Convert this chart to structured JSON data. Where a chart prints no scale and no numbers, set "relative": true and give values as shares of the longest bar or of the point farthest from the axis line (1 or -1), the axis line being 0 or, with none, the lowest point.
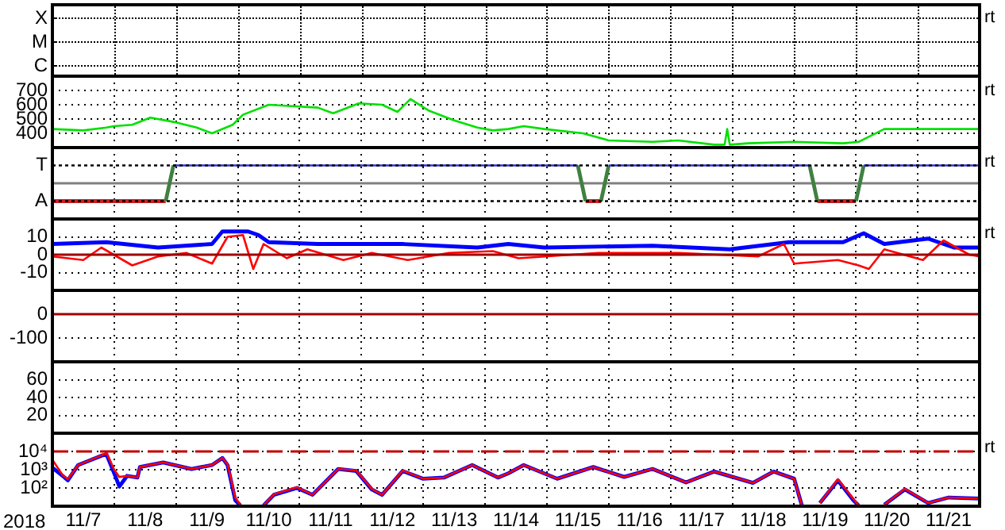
{
  "chart_data": [
    {
      "type": "other",
      "annotations": [
        "rt"
      ],
      "y_categories": [
        "X",
        "M",
        "C"
      ]
    },
    {
      "type": "line",
      "tick_labels": "y",
      "grid": true,
      "annotations": [
        "rt"
      ],
      "ylim": [
        300,
        800
      ],
      "yticks": [
        400,
        500,
        600,
        700
      ],
      "xlim": [
        "2018-11-07",
        "2018-11-22"
      ],
      "xticks": [
        {
          "value": "2018-11-07",
          "label": null
        },
        {
          "value": "2018-11-08",
          "label": null
        },
        {
          "value": "2018-11-09",
          "label": null
        },
        {
          "value": "2018-11-10",
          "label": null
        },
        {
          "value": "2018-11-11",
          "label": null
        },
        {
          "value": "2018-11-12",
          "label": null
        },
        {
          "value": "2018-11-13",
          "label": null
        },
        {
          "value": "2018-11-14",
          "label": null
        },
        {
          "value": "2018-11-15",
          "label": null
        },
        {
          "value": "2018-11-16",
          "label": null
        },
        {
          "value": "2018-11-17",
          "label": null
        },
        {
          "value": "2018-11-18",
          "label": null
        },
        {
          "value": "2018-11-19",
          "label": null
        },
        {
          "value": "2018-11-20",
          "label": null
        },
        {
          "value": "2018-11-21",
          "label": null
        },
        {
          "value": "2018-11-22",
          "label": null
        }
      ],
      "series": [
        {
          "color": "#00e000",
          "x": [
            "2018-11-07T00:00",
            "2018-11-07T12:00",
            "2018-11-07T21:00",
            "2018-11-08T00:00",
            "2018-11-08T07:00",
            "2018-11-08T14:00",
            "2018-11-08T23:00",
            "2018-11-09T08:00",
            "2018-11-09T14:00",
            "2018-11-09T22:00",
            "2018-11-10T02:00",
            "2018-11-10T12:00",
            "2018-11-10T21:00",
            "2018-11-11T07:00",
            "2018-11-11T13:00",
            "2018-11-11T23:00",
            "2018-11-12T08:00",
            "2018-11-12T14:00",
            "2018-11-12T19:00",
            "2018-11-13T02:00",
            "2018-11-13T12:00",
            "2018-11-13T21:00",
            "2018-11-14T03:00",
            "2018-11-14T09:00",
            "2018-11-14T15:00",
            "2018-11-14T23:00",
            "2018-11-15T14:00",
            "2018-11-16T00:00",
            "2018-11-16T17:00",
            "2018-11-17T03:00",
            "2018-11-17T17:00",
            "2018-11-17T21:00",
            "2018-11-17T22:00",
            "2018-11-17T23:00",
            "2018-11-18T06:00",
            "2018-11-19T00:00",
            "2018-11-19T19:00",
            "2018-11-20T01:00",
            "2018-11-20T11:00",
            "2018-11-20T23:00",
            "2018-11-21T14:00",
            "2018-11-22T00:00"
          ],
          "values": [
            430,
            420,
            440,
            450,
            460,
            510,
            480,
            440,
            400,
            460,
            530,
            600,
            590,
            580,
            540,
            610,
            600,
            550,
            640,
            560,
            490,
            440,
            420,
            430,
            450,
            430,
            400,
            350,
            340,
            350,
            320,
            320,
            430,
            320,
            330,
            340,
            330,
            340,
            430,
            430,
            430,
            430
          ]
        }
      ]
    },
    {
      "type": "line",
      "tick_labels": "y",
      "grid": true,
      "relative": true,
      "annotations": [
        "rt"
      ],
      "ref_lines": [
        {
          "axis": "y",
          "value": 1,
          "label": "T",
          "color": "#000000",
          "line_style": "dotted"
        },
        {
          "axis": "y",
          "value": -1,
          "label": "A",
          "color": "#000000",
          "line_style": "dotted"
        }
      ],
      "xlim": [
        "2018-11-07",
        "2018-11-22"
      ],
      "xticks": [
        {
          "value": "2018-11-07",
          "label": null
        },
        {
          "value": "2018-11-08",
          "label": null
        },
        {
          "value": "2018-11-09",
          "label": null
        },
        {
          "value": "2018-11-10",
          "label": null
        },
        {
          "value": "2018-11-11",
          "label": null
        },
        {
          "value": "2018-11-12",
          "label": null
        },
        {
          "value": "2018-11-13",
          "label": null
        },
        {
          "value": "2018-11-14",
          "label": null
        },
        {
          "value": "2018-11-15",
          "label": null
        },
        {
          "value": "2018-11-16",
          "label": null
        },
        {
          "value": "2018-11-17",
          "label": null
        },
        {
          "value": "2018-11-18",
          "label": null
        },
        {
          "value": "2018-11-19",
          "label": null
        },
        {
          "value": "2018-11-20",
          "label": null
        },
        {
          "value": "2018-11-21",
          "label": null
        },
        {
          "value": "2018-11-22",
          "label": null
        }
      ],
      "series": [
        {
          "type": "line",
          "color": "#cc2020",
          "x": [
            "2018-11-07T00:00",
            "2018-11-08T20:00",
            "2018-11-12T00:00",
            "2018-11-15T15:00",
            "2018-11-15T21:00",
            "2018-11-17T00:00",
            "2018-11-19T09:00",
            "2018-11-20T00:00"
          ],
          "values": [
            -1,
            -1,
            null,
            -1,
            -1,
            null,
            -1,
            -1
          ]
        },
        {
          "type": "line",
          "color": "#408040",
          "x": [
            "2018-11-08T20:00",
            "2018-11-08T23:00",
            "2018-11-12T00:00",
            "2018-11-15T12:00",
            "2018-11-15T15:00",
            "2018-11-15T18:00",
            "2018-11-15T21:00",
            "2018-11-16T00:00",
            "2018-11-17T00:00",
            "2018-11-19T06:00",
            "2018-11-19T09:00",
            "2018-11-19T18:00",
            "2018-11-20T00:00",
            "2018-11-20T03:00"
          ],
          "values": [
            -1,
            1,
            null,
            1,
            -1,
            null,
            -1,
            1,
            null,
            1,
            -1,
            null,
            -1,
            1
          ]
        },
        {
          "type": "line",
          "color": "#3333dd",
          "x": [
            "2018-11-08T23:00",
            "2018-11-15T12:00",
            "2018-11-15T18:00",
            "2018-11-16T00:00",
            "2018-11-19T06:00",
            "2018-11-19T18:00",
            "2018-11-20T03:00",
            "2018-11-22T00:00"
          ],
          "values": [
            1,
            1,
            null,
            1,
            1,
            null,
            1,
            1
          ]
        }
      ]
    },
    {
      "type": "line",
      "tick_labels": "y",
      "grid": true,
      "annotations": [
        "rt"
      ],
      "ylim": [
        -20,
        20
      ],
      "yticks": [
        10,
        0,
        -10
      ],
      "ref_lines": [
        {
          "axis": "y",
          "value": 0,
          "color": "#a00000"
        }
      ],
      "xlim": [
        "2018-11-07",
        "2018-11-22"
      ],
      "xticks": [
        {
          "value": "2018-11-07",
          "label": null
        },
        {
          "value": "2018-11-08",
          "label": null
        },
        {
          "value": "2018-11-09",
          "label": null
        },
        {
          "value": "2018-11-10",
          "label": null
        },
        {
          "value": "2018-11-11",
          "label": null
        },
        {
          "value": "2018-11-12",
          "label": null
        },
        {
          "value": "2018-11-13",
          "label": null
        },
        {
          "value": "2018-11-14",
          "label": null
        },
        {
          "value": "2018-11-15",
          "label": null
        },
        {
          "value": "2018-11-16",
          "label": null
        },
        {
          "value": "2018-11-17",
          "label": null
        },
        {
          "value": "2018-11-18",
          "label": null
        },
        {
          "value": "2018-11-19",
          "label": null
        },
        {
          "value": "2018-11-20",
          "label": null
        },
        {
          "value": "2018-11-21",
          "label": null
        },
        {
          "value": "2018-11-22",
          "label": null
        }
      ],
      "series": [
        {
          "color": "#0000ff",
          "x": [
            "2018-11-07T00:00",
            "2018-11-07T21:00",
            "2018-11-08T17:00",
            "2018-11-09T14:00",
            "2018-11-09T18:00",
            "2018-11-10T04:00",
            "2018-11-10T08:00",
            "2018-11-10T12:00",
            "2018-11-11T07:00",
            "2018-11-11T23:00",
            "2018-11-12T16:00",
            "2018-11-13T21:00",
            "2018-11-14T09:00",
            "2018-11-14T23:00",
            "2018-11-16T17:00",
            "2018-11-17T23:00",
            "2018-11-18T22:00",
            "2018-11-19T19:00",
            "2018-11-20T03:00",
            "2018-11-20T11:00",
            "2018-11-21T04:00",
            "2018-11-21T14:00",
            "2018-11-22T00:00"
          ],
          "values": [
            6,
            7,
            4,
            6,
            13,
            13,
            11,
            7,
            6,
            6,
            6,
            4,
            6,
            4,
            5,
            3,
            7,
            7,
            12,
            6,
            9,
            4,
            4
          ]
        },
        {
          "color": "#ff0000",
          "x": [
            "2018-11-07T00:00",
            "2018-11-07T12:00",
            "2018-11-07T19:00",
            "2018-11-08T07:00",
            "2018-11-08T17:00",
            "2018-11-09T04:00",
            "2018-11-09T14:00",
            "2018-11-09T20:00",
            "2018-11-10T02:00",
            "2018-11-10T06:00",
            "2018-11-10T10:00",
            "2018-11-10T19:00",
            "2018-11-11T03:00",
            "2018-11-11T17:00",
            "2018-11-12T04:00",
            "2018-11-12T18:00",
            "2018-11-13T10:00",
            "2018-11-14T03:00",
            "2018-11-14T13:00",
            "2018-11-15T20:00",
            "2018-11-17T03:00",
            "2018-11-18T10:00",
            "2018-11-18T20:00",
            "2018-11-19T00:00",
            "2018-11-19T17:00",
            "2018-11-20T01:00",
            "2018-11-20T05:00",
            "2018-11-20T11:00",
            "2018-11-21T02:00",
            "2018-11-21T10:00",
            "2018-11-21T20:00",
            "2018-11-22T00:00"
          ],
          "values": [
            -1,
            -3,
            4,
            -6,
            -1,
            1,
            -5,
            10,
            11,
            -8,
            6,
            -2,
            3,
            -3,
            1,
            -3,
            1,
            2,
            -2,
            1,
            1,
            -1,
            6,
            -5,
            -3,
            -6,
            -8,
            3,
            -3,
            8,
            0,
            -1
          ]
        }
      ]
    },
    {
      "type": "line",
      "tick_labels": "y",
      "grid": true,
      "ylim": [
        -200,
        100
      ],
      "yticks": [
        0,
        -100
      ],
      "ref_lines": [
        {
          "axis": "y",
          "value": 0,
          "color": "#a00000"
        }
      ],
      "xlim": [
        "2018-11-07",
        "2018-11-22"
      ],
      "xticks": [
        {
          "value": "2018-11-07",
          "label": null
        },
        {
          "value": "2018-11-08",
          "label": null
        },
        {
          "value": "2018-11-09",
          "label": null
        },
        {
          "value": "2018-11-10",
          "label": null
        },
        {
          "value": "2018-11-11",
          "label": null
        },
        {
          "value": "2018-11-12",
          "label": null
        },
        {
          "value": "2018-11-13",
          "label": null
        },
        {
          "value": "2018-11-14",
          "label": null
        },
        {
          "value": "2018-11-15",
          "label": null
        },
        {
          "value": "2018-11-16",
          "label": null
        },
        {
          "value": "2018-11-17",
          "label": null
        },
        {
          "value": "2018-11-18",
          "label": null
        },
        {
          "value": "2018-11-19",
          "label": null
        },
        {
          "value": "2018-11-20",
          "label": null
        },
        {
          "value": "2018-11-21",
          "label": null
        },
        {
          "value": "2018-11-22",
          "label": null
        }
      ]
    },
    {
      "type": "line",
      "tick_labels": "y",
      "grid": true,
      "ylim": [
        0,
        80
      ],
      "yticks": [
        60,
        40,
        20
      ],
      "xlim": [
        "2018-11-07",
        "2018-11-22"
      ],
      "xticks": [
        {
          "value": "2018-11-07",
          "label": null
        },
        {
          "value": "2018-11-08",
          "label": null
        },
        {
          "value": "2018-11-09",
          "label": null
        },
        {
          "value": "2018-11-10",
          "label": null
        },
        {
          "value": "2018-11-11",
          "label": null
        },
        {
          "value": "2018-11-12",
          "label": null
        },
        {
          "value": "2018-11-13",
          "label": null
        },
        {
          "value": "2018-11-14",
          "label": null
        },
        {
          "value": "2018-11-15",
          "label": null
        },
        {
          "value": "2018-11-16",
          "label": null
        },
        {
          "value": "2018-11-17",
          "label": null
        },
        {
          "value": "2018-11-18",
          "label": null
        },
        {
          "value": "2018-11-19",
          "label": null
        },
        {
          "value": "2018-11-20",
          "label": null
        },
        {
          "value": "2018-11-21",
          "label": null
        },
        {
          "value": "2018-11-22",
          "label": null
        }
      ]
    },
    {
      "type": "line",
      "log": true,
      "grid": true,
      "xlabel": "2018",
      "annotations": [
        "rt"
      ],
      "ylim": [
        10,
        100000
      ],
      "yticks": [
        {
          "value": 10000,
          "label": "10⁴"
        },
        {
          "value": 1000,
          "label": "10³"
        },
        {
          "value": 100,
          "label": "10²"
        }
      ],
      "ref_lines": [
        {
          "axis": "y",
          "value": 10000,
          "color": "#c00000",
          "line_style": "dashed"
        }
      ],
      "xlim": [
        "2018-11-07",
        "2018-11-22"
      ],
      "xticks": [
        {
          "value": "2018-11-07",
          "label": null
        },
        {
          "value": "2018-11-07T12:00",
          "label": "11/7"
        },
        {
          "value": "2018-11-08",
          "label": null
        },
        {
          "value": "2018-11-08T12:00",
          "label": "11/8"
        },
        {
          "value": "2018-11-09",
          "label": null
        },
        {
          "value": "2018-11-09T12:00",
          "label": "11/9"
        },
        {
          "value": "2018-11-10",
          "label": null
        },
        {
          "value": "2018-11-10T12:00",
          "label": "11/10"
        },
        {
          "value": "2018-11-11",
          "label": null
        },
        {
          "value": "2018-11-11T12:00",
          "label": "11/11"
        },
        {
          "value": "2018-11-12",
          "label": null
        },
        {
          "value": "2018-11-12T12:00",
          "label": "11/12"
        },
        {
          "value": "2018-11-13",
          "label": null
        },
        {
          "value": "2018-11-13T12:00",
          "label": "11/13"
        },
        {
          "value": "2018-11-14",
          "label": null
        },
        {
          "value": "2018-11-14T12:00",
          "label": "11/14"
        },
        {
          "value": "2018-11-15",
          "label": null
        },
        {
          "value": "2018-11-15T12:00",
          "label": "11/15"
        },
        {
          "value": "2018-11-16",
          "label": null
        },
        {
          "value": "2018-11-16T12:00",
          "label": "11/16"
        },
        {
          "value": "2018-11-17",
          "label": null
        },
        {
          "value": "2018-11-17T12:00",
          "label": "11/17"
        },
        {
          "value": "2018-11-18",
          "label": null
        },
        {
          "value": "2018-11-18T12:00",
          "label": "11/18"
        },
        {
          "value": "2018-11-19",
          "label": null
        },
        {
          "value": "2018-11-19T12:00",
          "label": "11/19"
        },
        {
          "value": "2018-11-20",
          "label": null
        },
        {
          "value": "2018-11-20T12:00",
          "label": "11/20"
        },
        {
          "value": "2018-11-21",
          "label": null
        },
        {
          "value": "2018-11-21T12:00",
          "label": "11/21"
        },
        {
          "value": "2018-11-22",
          "label": null
        }
      ],
      "series": [
        {
          "color": "#0000ff",
          "x": [
            "2018-11-07T00:00",
            "2018-11-07T04:00",
            "2018-11-07T06:00",
            "2018-11-07T10:00",
            "2018-11-07T19:00",
            "2018-11-07T21:00",
            "2018-11-08T00:00",
            "2018-11-08T02:00",
            "2018-11-08T05:00",
            "2018-11-08T09:00",
            "2018-11-08T10:00",
            "2018-11-08T19:00",
            "2018-11-09T06:00",
            "2018-11-09T14:00",
            "2018-11-09T18:00",
            "2018-11-09T20:00",
            "2018-11-09T23:00",
            "2018-11-10T01:00",
            "2018-11-10T05:00",
            "2018-11-10T10:00",
            "2018-11-10T14:00",
            "2018-11-10T23:00",
            "2018-11-11T05:00",
            "2018-11-11T15:00",
            "2018-11-11T22:00",
            "2018-11-12T04:00",
            "2018-11-12T08:00",
            "2018-11-12T16:00",
            "2018-11-13T00:00",
            "2018-11-13T08:00",
            "2018-11-13T19:00",
            "2018-11-14T05:00",
            "2018-11-14T09:00",
            "2018-11-14T15:00",
            "2018-11-15T04:00",
            "2018-11-15T18:00",
            "2018-11-16T06:00",
            "2018-11-16T17:00",
            "2018-11-17T06:00",
            "2018-11-17T17:00",
            "2018-11-18T08:00",
            "2018-11-18T16:00",
            "2018-11-19T00:00",
            "2018-11-19T03:00",
            "2018-11-19T06:00",
            "2018-11-19T10:00",
            "2018-11-19T17:00",
            "2018-11-19T23:00",
            "2018-11-20T01:00",
            "2018-11-20T06:00",
            "2018-11-20T11:00",
            "2018-11-20T19:00",
            "2018-11-21T04:00",
            "2018-11-21T12:00",
            "2018-11-22T00:00"
          ],
          "values": [
            1300,
            460,
            260,
            1800,
            5800,
            6900,
            630,
            120,
            460,
            370,
            1400,
            2500,
            1100,
            1800,
            4400,
            1800,
            21,
            11,
            null,
            11,
            42,
            100,
            42,
            1100,
            850,
            83,
            42,
            850,
            320,
            370,
            1800,
            370,
            630,
            1800,
            320,
            1400,
            400,
            1100,
            200,
            790,
            190,
            790,
            320,
            11,
            null,
            15,
            260,
            21,
            11,
            null,
            12,
            83,
            15,
            30,
            26
          ]
        },
        {
          "color": "#ff0000",
          "x": [
            "2018-11-07T00:00",
            "2018-11-07T04:00",
            "2018-11-07T06:00",
            "2018-11-07T10:00",
            "2018-11-07T19:00",
            "2018-11-07T21:00",
            "2018-11-08T00:00",
            "2018-11-08T02:00",
            "2018-11-08T05:00",
            "2018-11-08T09:00",
            "2018-11-08T10:00",
            "2018-11-08T19:00",
            "2018-11-09T06:00",
            "2018-11-09T14:00",
            "2018-11-09T18:00",
            "2018-11-09T20:00",
            "2018-11-09T23:00",
            "2018-11-10T01:00",
            "2018-11-10T05:00",
            "2018-11-10T10:00",
            "2018-11-10T14:00",
            "2018-11-10T23:00",
            "2018-11-11T05:00",
            "2018-11-11T15:00",
            "2018-11-11T22:00",
            "2018-11-12T04:00",
            "2018-11-12T08:00",
            "2018-11-12T16:00",
            "2018-11-13T00:00",
            "2018-11-13T08:00",
            "2018-11-13T19:00",
            "2018-11-14T05:00",
            "2018-11-14T09:00",
            "2018-11-14T15:00",
            "2018-11-15T04:00",
            "2018-11-15T18:00",
            "2018-11-16T06:00",
            "2018-11-16T17:00",
            "2018-11-17T06:00",
            "2018-11-17T17:00",
            "2018-11-18T08:00",
            "2018-11-18T16:00",
            "2018-11-19T00:00",
            "2018-11-19T03:00",
            "2018-11-19T06:00",
            "2018-11-19T10:00",
            "2018-11-19T17:00",
            "2018-11-19T23:00",
            "2018-11-20T01:00",
            "2018-11-20T06:00",
            "2018-11-20T11:00",
            "2018-11-20T19:00",
            "2018-11-21T04:00",
            "2018-11-21T12:00",
            "2018-11-22T00:00"
          ],
          "values": [
            3500,
            500,
            300,
            1800,
            6000,
            8500,
            1000,
            400,
            460,
            370,
            1400,
            2500,
            1100,
            1800,
            4400,
            2000,
            30,
            12,
            null,
            11,
            45,
            110,
            42,
            1100,
            900,
            90,
            42,
            900,
            320,
            370,
            1800,
            370,
            630,
            1800,
            320,
            1400,
            400,
            1100,
            200,
            790,
            190,
            790,
            320,
            11,
            null,
            15,
            300,
            25,
            11,
            null,
            12,
            90,
            15,
            30,
            26
          ]
        }
      ]
    }
  ]
}
